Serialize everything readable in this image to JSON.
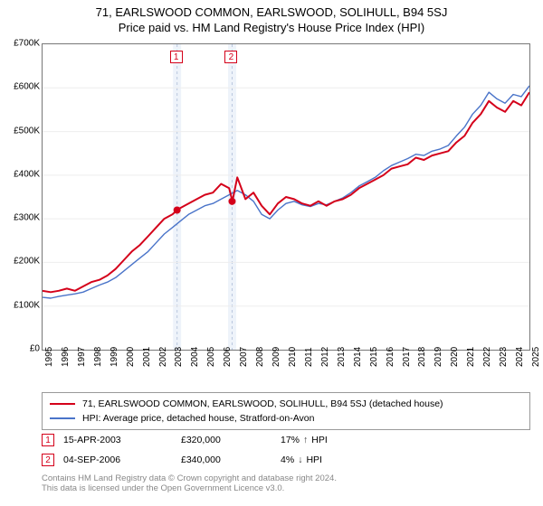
{
  "title": "71, EARLSWOOD COMMON, EARLSWOOD, SOLIHULL, B94 5SJ",
  "subtitle": "Price paid vs. HM Land Registry's House Price Index (HPI)",
  "chart": {
    "type": "line",
    "background_color": "#ffffff",
    "border_color": "#777777",
    "grid_color": "#cccccc",
    "ylim": [
      0,
      700000
    ],
    "ytick_step": 100000,
    "yticks": [
      "£0",
      "£100K",
      "£200K",
      "£300K",
      "£400K",
      "£500K",
      "£600K",
      "£700K"
    ],
    "xlim": [
      1995,
      2025
    ],
    "xticks": [
      1995,
      1996,
      1997,
      1998,
      1999,
      2000,
      2001,
      2002,
      2003,
      2004,
      2005,
      2006,
      2007,
      2008,
      2009,
      2010,
      2011,
      2012,
      2013,
      2014,
      2015,
      2016,
      2017,
      2018,
      2019,
      2020,
      2021,
      2022,
      2023,
      2024,
      2025
    ],
    "label_fontsize": 10,
    "series": [
      {
        "name": "property",
        "label": "71, EARLSWOOD COMMON, EARLSWOOD, SOLIHULL, B94 5SJ (detached house)",
        "color": "#d4001a",
        "line_width": 2,
        "points": [
          [
            1995,
            135000
          ],
          [
            1995.5,
            132000
          ],
          [
            1996,
            135000
          ],
          [
            1996.5,
            140000
          ],
          [
            1997,
            135000
          ],
          [
            1997.5,
            145000
          ],
          [
            1998,
            155000
          ],
          [
            1998.5,
            160000
          ],
          [
            1999,
            170000
          ],
          [
            1999.5,
            185000
          ],
          [
            2000,
            205000
          ],
          [
            2000.5,
            225000
          ],
          [
            2001,
            240000
          ],
          [
            2001.5,
            260000
          ],
          [
            2002,
            280000
          ],
          [
            2002.5,
            300000
          ],
          [
            2003,
            310000
          ],
          [
            2003.3,
            320000
          ],
          [
            2003.5,
            325000
          ],
          [
            2004,
            335000
          ],
          [
            2004.5,
            345000
          ],
          [
            2005,
            355000
          ],
          [
            2005.5,
            360000
          ],
          [
            2006,
            380000
          ],
          [
            2006.5,
            370000
          ],
          [
            2006.7,
            340000
          ],
          [
            2007,
            395000
          ],
          [
            2007.5,
            345000
          ],
          [
            2008,
            360000
          ],
          [
            2008.5,
            330000
          ],
          [
            2009,
            310000
          ],
          [
            2009.5,
            335000
          ],
          [
            2010,
            350000
          ],
          [
            2010.5,
            345000
          ],
          [
            2011,
            335000
          ],
          [
            2011.5,
            330000
          ],
          [
            2012,
            340000
          ],
          [
            2012.5,
            330000
          ],
          [
            2013,
            340000
          ],
          [
            2013.5,
            345000
          ],
          [
            2014,
            355000
          ],
          [
            2014.5,
            370000
          ],
          [
            2015,
            380000
          ],
          [
            2015.5,
            390000
          ],
          [
            2016,
            400000
          ],
          [
            2016.5,
            415000
          ],
          [
            2017,
            420000
          ],
          [
            2017.5,
            425000
          ],
          [
            2018,
            440000
          ],
          [
            2018.5,
            435000
          ],
          [
            2019,
            445000
          ],
          [
            2019.5,
            450000
          ],
          [
            2020,
            455000
          ],
          [
            2020.5,
            475000
          ],
          [
            2021,
            490000
          ],
          [
            2021.5,
            520000
          ],
          [
            2022,
            540000
          ],
          [
            2022.5,
            570000
          ],
          [
            2023,
            555000
          ],
          [
            2023.5,
            545000
          ],
          [
            2024,
            570000
          ],
          [
            2024.5,
            560000
          ],
          [
            2025,
            590000
          ]
        ]
      },
      {
        "name": "hpi",
        "label": "HPI: Average price, detached house, Stratford-on-Avon",
        "color": "#4a74c9",
        "line_width": 1.4,
        "points": [
          [
            1995,
            120000
          ],
          [
            1995.5,
            118000
          ],
          [
            1996,
            122000
          ],
          [
            1996.5,
            125000
          ],
          [
            1997,
            128000
          ],
          [
            1997.5,
            132000
          ],
          [
            1998,
            140000
          ],
          [
            1998.5,
            148000
          ],
          [
            1999,
            155000
          ],
          [
            1999.5,
            165000
          ],
          [
            2000,
            180000
          ],
          [
            2000.5,
            195000
          ],
          [
            2001,
            210000
          ],
          [
            2001.5,
            225000
          ],
          [
            2002,
            245000
          ],
          [
            2002.5,
            265000
          ],
          [
            2003,
            280000
          ],
          [
            2003.5,
            295000
          ],
          [
            2004,
            310000
          ],
          [
            2004.5,
            320000
          ],
          [
            2005,
            330000
          ],
          [
            2005.5,
            335000
          ],
          [
            2006,
            345000
          ],
          [
            2006.5,
            355000
          ],
          [
            2007,
            365000
          ],
          [
            2007.5,
            355000
          ],
          [
            2008,
            340000
          ],
          [
            2008.5,
            310000
          ],
          [
            2009,
            300000
          ],
          [
            2009.5,
            320000
          ],
          [
            2010,
            335000
          ],
          [
            2010.5,
            340000
          ],
          [
            2011,
            332000
          ],
          [
            2011.5,
            328000
          ],
          [
            2012,
            335000
          ],
          [
            2012.5,
            332000
          ],
          [
            2013,
            340000
          ],
          [
            2013.5,
            348000
          ],
          [
            2014,
            360000
          ],
          [
            2014.5,
            375000
          ],
          [
            2015,
            385000
          ],
          [
            2015.5,
            395000
          ],
          [
            2016,
            410000
          ],
          [
            2016.5,
            422000
          ],
          [
            2017,
            430000
          ],
          [
            2017.5,
            438000
          ],
          [
            2018,
            448000
          ],
          [
            2018.5,
            445000
          ],
          [
            2019,
            455000
          ],
          [
            2019.5,
            460000
          ],
          [
            2020,
            468000
          ],
          [
            2020.5,
            490000
          ],
          [
            2021,
            510000
          ],
          [
            2021.5,
            540000
          ],
          [
            2022,
            560000
          ],
          [
            2022.5,
            590000
          ],
          [
            2023,
            575000
          ],
          [
            2023.5,
            565000
          ],
          [
            2024,
            585000
          ],
          [
            2024.5,
            580000
          ],
          [
            2025,
            605000
          ]
        ]
      }
    ],
    "markers": [
      {
        "num": "1",
        "x": 2003.29,
        "y": 320000,
        "band_width_years": 0.5,
        "color": "#d4001a"
      },
      {
        "num": "2",
        "x": 2006.68,
        "y": 340000,
        "band_width_years": 0.5,
        "color": "#d4001a"
      }
    ],
    "marker_label_y_offset": -52
  },
  "legend": {
    "border_color": "#999999"
  },
  "sales": [
    {
      "num": "1",
      "date": "15-APR-2003",
      "price": "£320,000",
      "diff_pct": "17%",
      "diff_dir": "up",
      "diff_label": "HPI"
    },
    {
      "num": "2",
      "date": "04-SEP-2006",
      "price": "£340,000",
      "diff_pct": "4%",
      "diff_dir": "down",
      "diff_label": "HPI"
    }
  ],
  "footnote_l1": "Contains HM Land Registry data © Crown copyright and database right 2024.",
  "footnote_l2": "This data is licensed under the Open Government Licence v3.0.",
  "colors": {
    "arrow": "#333333",
    "band": "#eef3fa"
  }
}
